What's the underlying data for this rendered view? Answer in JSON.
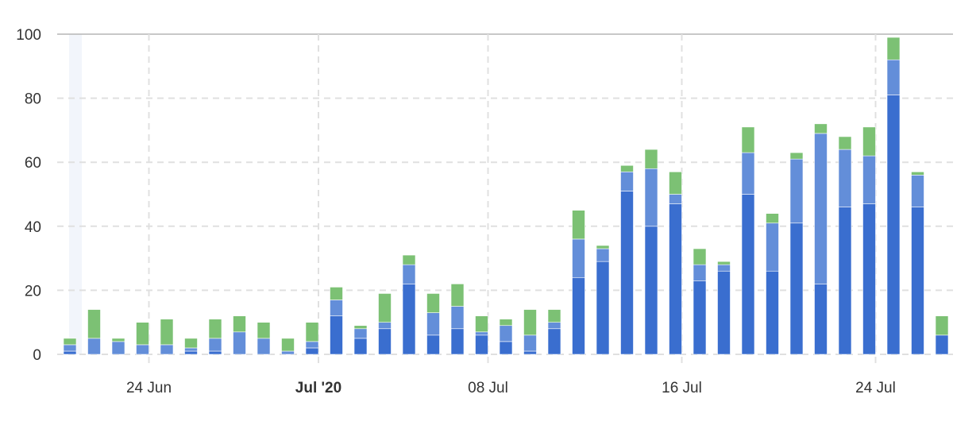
{
  "chart_data": {
    "type": "bar",
    "stacked": true,
    "title": "",
    "xlabel": "",
    "ylabel": "",
    "ylim": [
      0,
      100
    ],
    "yticks": [
      0,
      20,
      40,
      60,
      80,
      100
    ],
    "grid": true,
    "categories": [
      "21 Jun",
      "22 Jun",
      "23 Jun",
      "24 Jun",
      "25 Jun",
      "26 Jun",
      "27 Jun",
      "28 Jun",
      "29 Jun",
      "30 Jun",
      "01 Jul",
      "02 Jul",
      "03 Jul",
      "04 Jul",
      "05 Jul",
      "06 Jul",
      "07 Jul",
      "08 Jul",
      "09 Jul",
      "10 Jul",
      "11 Jul",
      "12 Jul",
      "13 Jul",
      "14 Jul",
      "15 Jul",
      "16 Jul",
      "17 Jul",
      "18 Jul",
      "19 Jul",
      "20 Jul",
      "21 Jul",
      "22 Jul",
      "23 Jul",
      "24 Jul",
      "25 Jul",
      "26 Jul",
      "27 Jul"
    ],
    "xticks": [
      {
        "index": 3,
        "label": "24 Jun",
        "bold": false
      },
      {
        "index": 10,
        "label": "Jul '20",
        "bold": true
      },
      {
        "index": 17,
        "label": "08 Jul",
        "bold": false
      },
      {
        "index": 25,
        "label": "16 Jul",
        "bold": false
      },
      {
        "index": 33,
        "label": "24 Jul",
        "bold": false
      }
    ],
    "highlight_index": 0,
    "series": [
      {
        "name": "dark-blue",
        "color": "#3a6ecf",
        "values": [
          1,
          0,
          0,
          0,
          0,
          1,
          1,
          0,
          0,
          0,
          2,
          12,
          5,
          8,
          22,
          6,
          8,
          6,
          4,
          1,
          8,
          24,
          29,
          51,
          40,
          47,
          23,
          26,
          50,
          26,
          41,
          22,
          46,
          47,
          81,
          46,
          6
        ]
      },
      {
        "name": "light-blue",
        "color": "#638ed9",
        "values": [
          2,
          5,
          4,
          3,
          3,
          1,
          4,
          7,
          5,
          1,
          2,
          5,
          3,
          2,
          6,
          7,
          7,
          1,
          5,
          5,
          2,
          12,
          4,
          6,
          18,
          3,
          5,
          2,
          13,
          15,
          20,
          47,
          18,
          15,
          11,
          10,
          0
        ]
      },
      {
        "name": "green",
        "color": "#7cc174",
        "values": [
          2,
          9,
          1,
          7,
          8,
          3,
          6,
          5,
          5,
          4,
          6,
          4,
          1,
          9,
          3,
          6,
          7,
          5,
          2,
          8,
          4,
          9,
          1,
          2,
          6,
          7,
          5,
          1,
          8,
          3,
          2,
          3,
          4,
          9,
          7,
          1,
          6
        ]
      }
    ]
  }
}
